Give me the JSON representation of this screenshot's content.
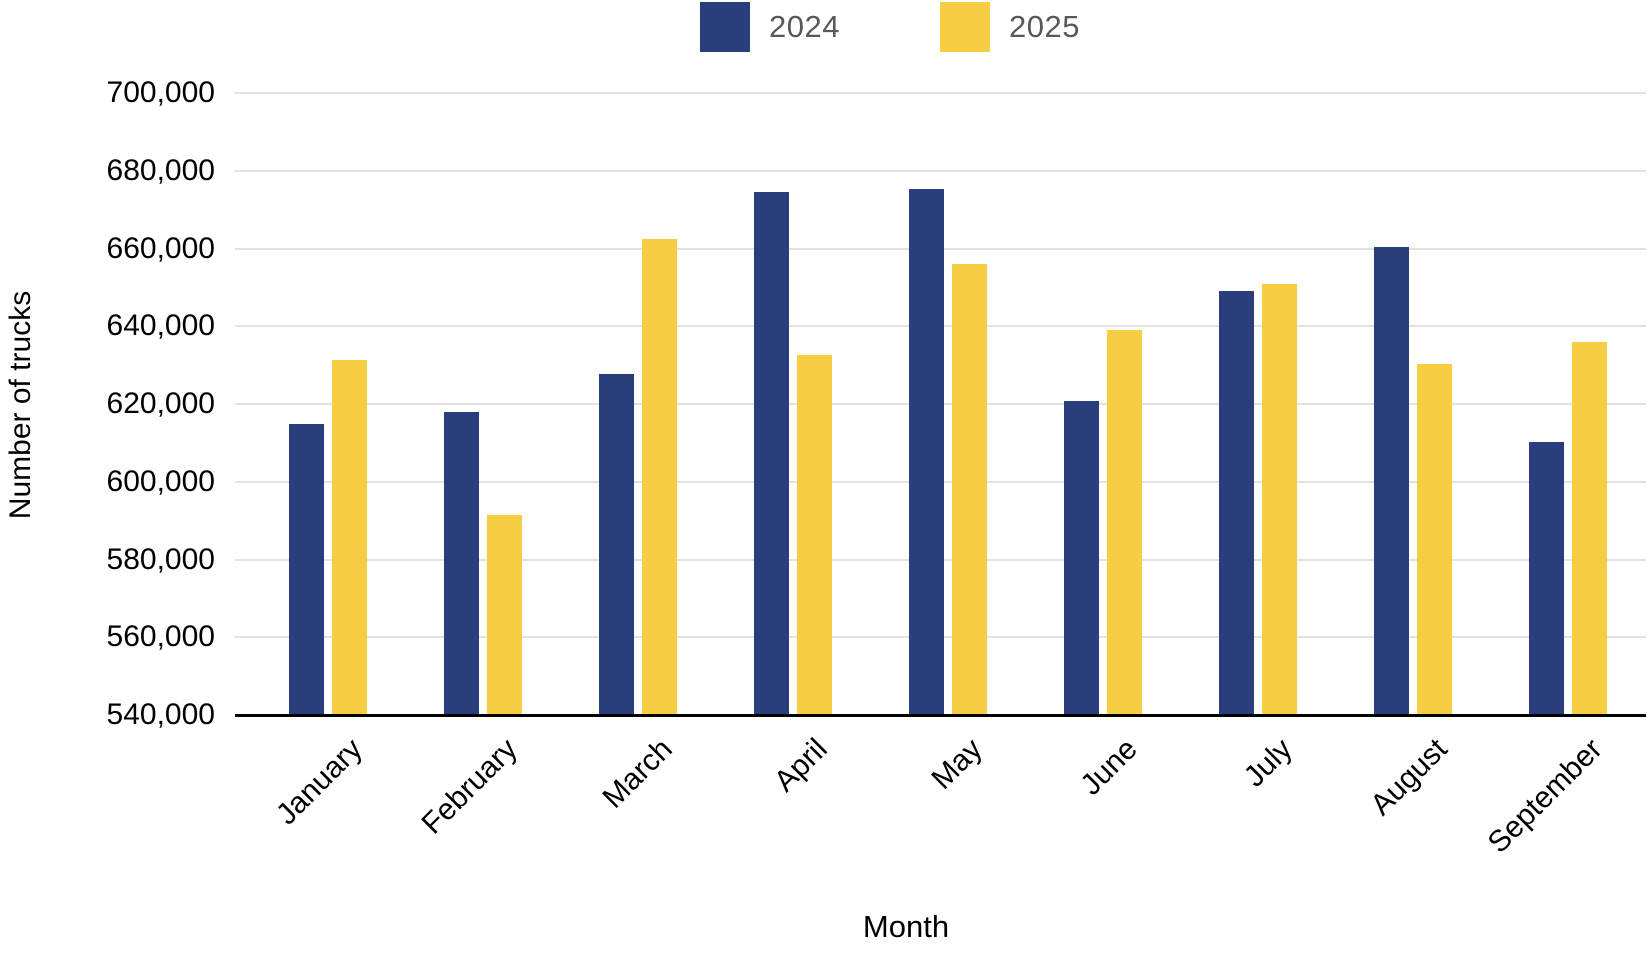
{
  "chart_data": {
    "type": "bar",
    "title": "",
    "xlabel": "Month",
    "ylabel": "Number of trucks",
    "categories": [
      "January",
      "February",
      "March",
      "April",
      "May",
      "June",
      "July",
      "August",
      "September"
    ],
    "series": [
      {
        "name": "2024",
        "color": "#2A3D7C",
        "values": [
          614700,
          617600,
          627400,
          674300,
          675100,
          620500,
          648700,
          660000,
          610000
        ]
      },
      {
        "name": "2025",
        "color": "#F7CD43",
        "values": [
          631000,
          591100,
          662100,
          632300,
          655800,
          638900,
          650600,
          630000,
          635700
        ]
      }
    ],
    "ylim": [
      540000,
      700000
    ],
    "ytick_step": 20000,
    "ytick_labels": [
      "700,000",
      "680,000",
      "660,000",
      "640,000",
      "620,000",
      "600,000",
      "580,000",
      "560,000",
      "540,000"
    ],
    "grid": true,
    "legend_position": "top"
  },
  "legend": {
    "items": [
      {
        "label": "2024",
        "color": "#2A3D7C"
      },
      {
        "label": "2025",
        "color": "#F7CD43"
      }
    ]
  },
  "colors": {
    "gridline": "#E2E2E2",
    "axis_line": "#000000",
    "legend_text": "#58595B",
    "tick_text": "#000000"
  }
}
